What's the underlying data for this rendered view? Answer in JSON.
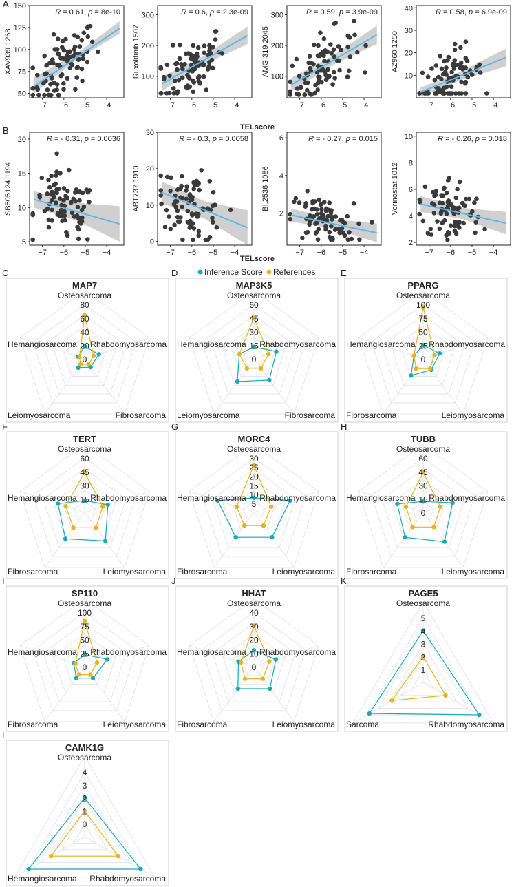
{
  "colors": {
    "points": "#3a3a3a",
    "fit": "#5cb8e6",
    "band": "#c8c8c8",
    "inference": "#1aa9b5",
    "references": "#e6b422",
    "grid": "#e3e3e3",
    "frame": "#cfcfcf"
  },
  "panel_letters": [
    "A",
    "B",
    "C",
    "D",
    "E",
    "F",
    "G",
    "H",
    "I",
    "J",
    "K",
    "L"
  ],
  "legend": {
    "inference": "Inference Score",
    "references": "References"
  },
  "chart_data": [
    {
      "type": "scatter",
      "panel": "A",
      "row": 0,
      "col": 0,
      "ylabel": "XAV939 1268",
      "xlabel": "",
      "stat": "R = 0.61, p = 8e-10",
      "xlim": [
        -7.6,
        -3.2
      ],
      "ylim": [
        45,
        150
      ],
      "xticks": [
        -7,
        -6,
        -5,
        -4
      ],
      "yticks": [
        50,
        75,
        100,
        125,
        150
      ],
      "fit": [
        [
          -7.4,
          58
        ],
        [
          -3.4,
          124
        ]
      ],
      "band_lo": [
        50,
        118
      ],
      "band_hi": [
        68,
        132
      ],
      "y_min": 48,
      "y_max": 145
    },
    {
      "type": "scatter",
      "panel": "",
      "row": 0,
      "col": 1,
      "ylabel": "Ruxolitinib 1507",
      "xlabel": "",
      "stat": "R = 0.6, p = 2.3e-09",
      "xlim": [
        -7.6,
        -3.2
      ],
      "ylim": [
        30,
        330
      ],
      "xticks": [
        -7,
        -6,
        -5,
        -4
      ],
      "yticks": [
        100,
        200,
        300
      ],
      "fit": [
        [
          -7.4,
          75
        ],
        [
          -3.4,
          232
        ]
      ],
      "band_lo": [
        52,
        205
      ],
      "band_hi": [
        98,
        262
      ],
      "y_min": 45,
      "y_max": 315
    },
    {
      "type": "scatter",
      "panel": "",
      "row": 0,
      "col": 2,
      "ylabel": "AMG.319 2045",
      "xlabel": "",
      "stat": "R = 0.59, p = 3.9e-09",
      "xlim": [
        -7.6,
        -3.2
      ],
      "ylim": [
        30,
        330
      ],
      "xticks": [
        -7,
        -6,
        -5,
        -4
      ],
      "yticks": [
        100,
        200,
        300
      ],
      "fit": [
        [
          -7.4,
          72
        ],
        [
          -3.4,
          235
        ]
      ],
      "band_lo": [
        50,
        205
      ],
      "band_hi": [
        95,
        265
      ],
      "y_min": 40,
      "y_max": 320
    },
    {
      "type": "scatter",
      "panel": "",
      "row": 0,
      "col": 3,
      "ylabel": "AZ960 1250",
      "xlabel": "",
      "stat": "R = 0.58, p = 6.9e-09",
      "xlim": [
        -7.6,
        -3.2
      ],
      "ylim": [
        0,
        41
      ],
      "xticks": [
        -7,
        -6,
        -5,
        -4
      ],
      "yticks": [
        10,
        20,
        30,
        40
      ],
      "fit": [
        [
          -7.4,
          2.5
        ],
        [
          -3.4,
          18
        ]
      ],
      "band_lo": [
        0.5,
        14
      ],
      "band_hi": [
        4.5,
        22
      ],
      "y_min": 2,
      "y_max": 38
    },
    {
      "type": "scatter",
      "panel": "B",
      "row": 1,
      "col": 0,
      "ylabel": "SB505124 1194",
      "xlabel": "",
      "stat": "R = - 0.31, p = 0.0036",
      "xlim": [
        -7.6,
        -3.2
      ],
      "ylim": [
        4.5,
        21
      ],
      "xticks": [
        -7,
        -6,
        -5,
        -4
      ],
      "yticks": [
        5,
        10,
        15,
        20
      ],
      "fit": [
        [
          -7.4,
          11.2
        ],
        [
          -3.4,
          7.6
        ]
      ],
      "band_lo": [
        10.0,
        5.0
      ],
      "band_hi": [
        12.4,
        10.2
      ],
      "y_min": 5,
      "y_max": 18
    },
    {
      "type": "scatter",
      "panel": "",
      "row": 1,
      "col": 1,
      "ylabel": "ABT737 1910",
      "xlabel": "",
      "stat": "R = - 0.3, p = 0.0058",
      "xlim": [
        -7.6,
        -3.2
      ],
      "ylim": [
        -1,
        30
      ],
      "xticks": [
        -7,
        -6,
        -5,
        -4
      ],
      "yticks": [
        0,
        10,
        20,
        30
      ],
      "fit": [
        [
          -7.4,
          13.5
        ],
        [
          -3.4,
          3.8
        ]
      ],
      "band_lo": [
        10.5,
        -1.0
      ],
      "band_hi": [
        16.5,
        8.6
      ],
      "y_min": 0.5,
      "y_max": 25
    },
    {
      "type": "scatter",
      "panel": "",
      "row": 1,
      "col": 2,
      "ylabel": "BI.2536 1086",
      "xlabel": "",
      "stat": "R = - 0.27, p = 0.015",
      "xlim": [
        -7.6,
        -3.2
      ],
      "ylim": [
        0.3,
        6.3
      ],
      "xticks": [
        -7,
        -6,
        -5,
        -4
      ],
      "yticks": [
        2,
        4,
        6
      ],
      "fit": [
        [
          -7.4,
          1.9
        ],
        [
          -3.4,
          0.95
        ]
      ],
      "band_lo": [
        1.55,
        0.45
      ],
      "band_hi": [
        2.25,
        1.45
      ],
      "y_min": 0.6,
      "y_max": 4.2
    },
    {
      "type": "scatter",
      "panel": "",
      "row": 1,
      "col": 3,
      "ylabel": "Vorinostat 1012",
      "xlabel": "",
      "stat": "R = - 0.26, p = 0.018",
      "xlim": [
        -7.6,
        -3.2
      ],
      "ylim": [
        1.8,
        10.3
      ],
      "xticks": [
        -7,
        -6,
        -5,
        -4
      ],
      "yticks": [
        2,
        4,
        6,
        8,
        10
      ],
      "fit": [
        [
          -7.4,
          4.9
        ],
        [
          -3.4,
          3.45
        ]
      ],
      "band_lo": [
        4.3,
        2.6
      ],
      "band_hi": [
        5.5,
        4.3
      ],
      "y_min": 2.2,
      "y_max": 9.4
    },
    {
      "type": "radar",
      "panel": "C",
      "title": "MAP7",
      "axes": [
        "Osteosarcoma",
        "Rhabdomyosarcoma",
        "Fibrosarcoma",
        "Leiomyosarcoma",
        "Hemangiosarcoma"
      ],
      "rticks": [
        0,
        20,
        40,
        60,
        80
      ],
      "rmin": 0,
      "rmax": 80,
      "inference": [
        18,
        22,
        15,
        16,
        10
      ],
      "references": [
        64,
        14,
        10,
        10,
        8
      ]
    },
    {
      "type": "radar",
      "panel": "D",
      "title": "MAP3K5",
      "axes": [
        "Osteosarcoma",
        "Rhabdomyosarcoma",
        "Fibrosarcoma",
        "Leiomyosarcoma",
        "Hemangiosarcoma"
      ],
      "rticks": [
        0,
        15,
        30,
        45,
        60
      ],
      "rmin": 0,
      "rmax": 60,
      "inference": [
        13,
        26,
        29,
        31,
        17
      ],
      "references": [
        45,
        17,
        13,
        13,
        17
      ]
    },
    {
      "type": "radar",
      "panel": "E",
      "title": "PPARG",
      "axes": [
        "Osteosarcoma",
        "Rhabdomyosarcoma",
        "Leiomyosarcoma",
        "Fibrosarcoma",
        "Hemangiosarcoma"
      ],
      "rticks": [
        0,
        25,
        50,
        75,
        100
      ],
      "rmin": 0,
      "rmax": 100,
      "inference": [
        25,
        32,
        25,
        38,
        18
      ],
      "references": [
        95,
        22,
        22,
        22,
        18
      ]
    },
    {
      "type": "radar",
      "panel": "F",
      "title": "TERT",
      "axes": [
        "Osteosarcoma",
        "Rhabdomyosarcoma",
        "Leiomyosarcoma",
        "Fibrosarcoma",
        "Hemangiosarcoma"
      ],
      "rticks": [
        15,
        30,
        45,
        60
      ],
      "rmin": 0,
      "rmax": 60,
      "inference": [
        13,
        27,
        39,
        36,
        31
      ],
      "references": [
        44,
        21,
        21,
        21,
        22
      ]
    },
    {
      "type": "radar",
      "panel": "G",
      "title": "MORC4",
      "axes": [
        "Osteosarcoma",
        "Rhabdomyosarcoma",
        "Leiomyosarcoma",
        "Fibrosarcoma",
        "Hemangiosarcoma"
      ],
      "rticks": [
        5,
        10,
        15,
        20,
        25,
        30
      ],
      "rmin": 0,
      "rmax": 30,
      "inference": [
        8,
        21,
        17,
        17,
        21
      ],
      "references": [
        26,
        10,
        9,
        9,
        10
      ]
    },
    {
      "type": "radar",
      "panel": "H",
      "title": "TUBB",
      "axes": [
        "Osteosarcoma",
        "Rhabdomyosarcoma",
        "Leiomyosarcoma",
        "Fibrosarcoma",
        "Hemangiosarcoma"
      ],
      "rticks": [
        0,
        15,
        30,
        45,
        60
      ],
      "rmin": 0,
      "rmax": 60,
      "inference": [
        12,
        34,
        40,
        34,
        30
      ],
      "references": [
        44,
        20,
        20,
        20,
        20
      ]
    },
    {
      "type": "radar",
      "panel": "I",
      "title": "SP110",
      "axes": [
        "Osteosarcoma",
        "Rhabdomyosarcoma",
        "Leiomyosarcoma",
        "Fibrosarcoma",
        "Hemangiosarcoma"
      ],
      "rticks": [
        0,
        25,
        50,
        75,
        100
      ],
      "rmin": 0,
      "rmax": 100,
      "inference": [
        22,
        44,
        26,
        26,
        21
      ],
      "references": [
        84,
        24,
        18,
        18,
        18
      ]
    },
    {
      "type": "radar",
      "panel": "J",
      "title": "HHAT",
      "axes": [
        "Osteosarcoma",
        "Rhabdomyosarcoma",
        "Leiomyosarcoma",
        "Fibrosarcoma",
        "Hemangiosarcoma"
      ],
      "rticks": [
        0,
        10,
        20,
        30,
        40
      ],
      "rmin": 0,
      "rmax": 40,
      "inference": [
        12,
        17,
        20,
        20,
        12
      ],
      "references": [
        30,
        12,
        11,
        11,
        10
      ]
    },
    {
      "type": "radar",
      "panel": "K",
      "title": "PAGE5",
      "axes": [
        "Osteosarcoma",
        "Rhabdomyosarcoma",
        "Sarcoma"
      ],
      "rticks": [
        1,
        2,
        3,
        4,
        5
      ],
      "rmin": 0,
      "rmax": 5,
      "inference": [
        4,
        5,
        4.8
      ],
      "references": [
        2,
        2,
        2.8
      ]
    },
    {
      "type": "radar",
      "panel": "L",
      "title": "CAMK1G",
      "axes": [
        "Osteosarcoma",
        "Rhabdomyosarcoma",
        "Hemangiosarcoma"
      ],
      "rticks": [
        0,
        1,
        2,
        3,
        4
      ],
      "rmin": -1,
      "rmax": 4,
      "inference": [
        2,
        4,
        4
      ],
      "references": [
        1,
        2,
        2
      ]
    }
  ],
  "scatter_xlabel": "TELscore",
  "scatter_point_counts": [
    90,
    90,
    90,
    90,
    85,
    85,
    85,
    85
  ]
}
